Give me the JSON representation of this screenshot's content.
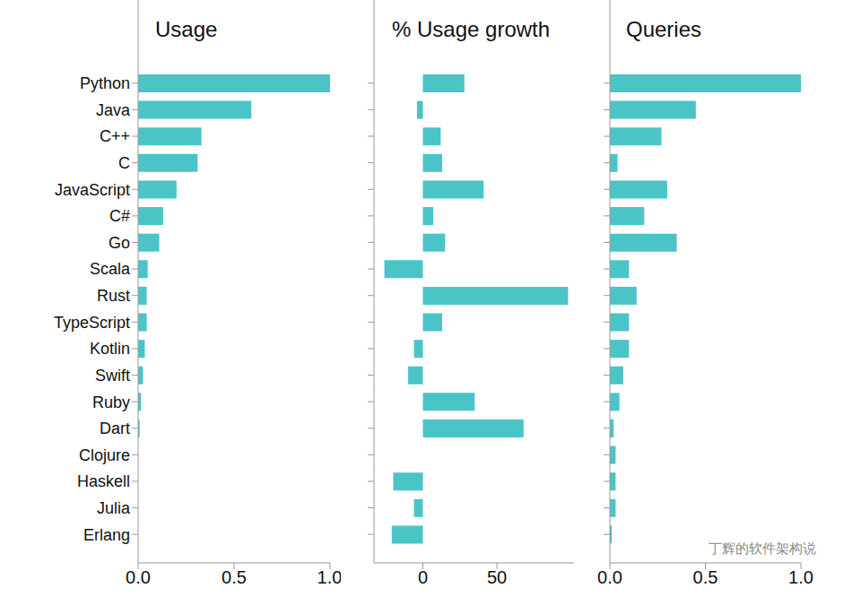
{
  "chart_data": [
    {
      "type": "bar",
      "orientation": "horizontal",
      "title": "Usage",
      "categories": [
        "Python",
        "Java",
        "C++",
        "C",
        "JavaScript",
        "C#",
        "Go",
        "Scala",
        "Rust",
        "TypeScript",
        "Kotlin",
        "Swift",
        "Ruby",
        "Dart",
        "Clojure",
        "Haskell",
        "Julia",
        "Erlang"
      ],
      "values": [
        1.0,
        0.59,
        0.33,
        0.31,
        0.2,
        0.13,
        0.11,
        0.05,
        0.045,
        0.045,
        0.035,
        0.025,
        0.015,
        0.008,
        0,
        0,
        0,
        0
      ],
      "color": "#4bc4c8",
      "xlim": [
        0,
        1.0
      ],
      "xticks": [
        {
          "value": 0,
          "label": "0.0"
        },
        {
          "value": 0.5,
          "label": "0.5"
        },
        {
          "value": 1.0,
          "label": "1.0"
        }
      ]
    },
    {
      "type": "bar",
      "orientation": "horizontal",
      "title": "% Usage growth",
      "categories": [
        "Python",
        "Java",
        "C++",
        "C",
        "JavaScript",
        "C#",
        "Go",
        "Scala",
        "Rust",
        "TypeScript",
        "Kotlin",
        "Swift",
        "Ruby",
        "Dart",
        "Clojure",
        "Haskell",
        "Julia",
        "Erlang"
      ],
      "values": [
        28,
        -4,
        12,
        13,
        41,
        7,
        15,
        -26,
        98,
        13,
        -6,
        -10,
        35,
        68,
        null,
        -20,
        -6,
        -21
      ],
      "color": "#4bc4c8",
      "xlim": [
        -33,
        102
      ],
      "xticks": [
        0,
        50
      ],
      "tick_labels": "x"
    },
    {
      "type": "bar",
      "orientation": "horizontal",
      "title": "Queries",
      "categories": [
        "Python",
        "Java",
        "C++",
        "C",
        "JavaScript",
        "C#",
        "Go",
        "Scala",
        "Rust",
        "TypeScript",
        "Kotlin",
        "Swift",
        "Ruby",
        "Dart",
        "Clojure",
        "Haskell",
        "Julia",
        "Erlang"
      ],
      "values": [
        1.0,
        0.45,
        0.27,
        0.04,
        0.3,
        0.18,
        0.35,
        0.1,
        0.14,
        0.1,
        0.1,
        0.07,
        0.05,
        0.02,
        0.03,
        0.03,
        0.03,
        0.01
      ],
      "color": "#4bc4c8",
      "xlim": [
        0,
        1.0
      ],
      "xticks": [
        {
          "value": 0,
          "label": "0.0"
        },
        {
          "value": 0.5,
          "label": "0.5"
        },
        {
          "value": 1.0,
          "label": "1.0"
        }
      ],
      "tick_labels": "x"
    }
  ],
  "watermark": "丁辉的软件架构说"
}
